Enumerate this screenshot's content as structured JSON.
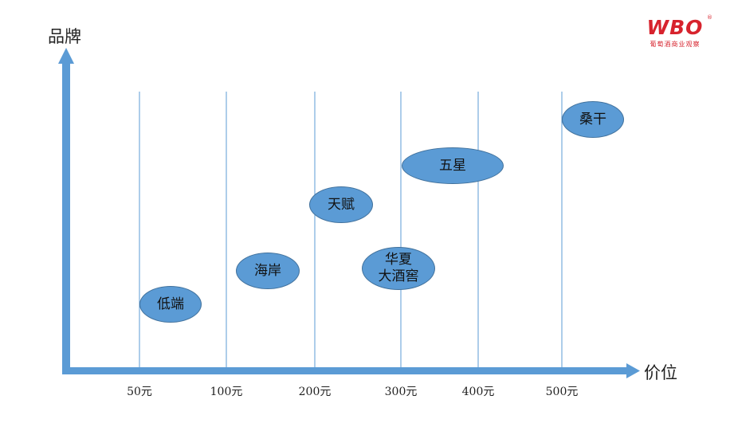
{
  "axes": {
    "y_label": "品牌",
    "x_label": "价位"
  },
  "price_ticks": [
    "50元",
    "100元",
    "200元",
    "300元",
    "400元",
    "500元"
  ],
  "brands": [
    {
      "name": "低端"
    },
    {
      "name": "海岸"
    },
    {
      "name": "天赋"
    },
    {
      "name": "华夏\n大酒窖"
    },
    {
      "name": "五星"
    },
    {
      "name": "桑干"
    }
  ],
  "logo": {
    "mark": "WBO",
    "reg": "®",
    "subtitle": "葡萄酒商业观察"
  },
  "colors": {
    "axis": "#5b9bd5",
    "ellipse_fill": "#5b9bd5",
    "ellipse_border": "#41719c",
    "gridline": "#5b9bd5",
    "logo": "#d7232d"
  }
}
